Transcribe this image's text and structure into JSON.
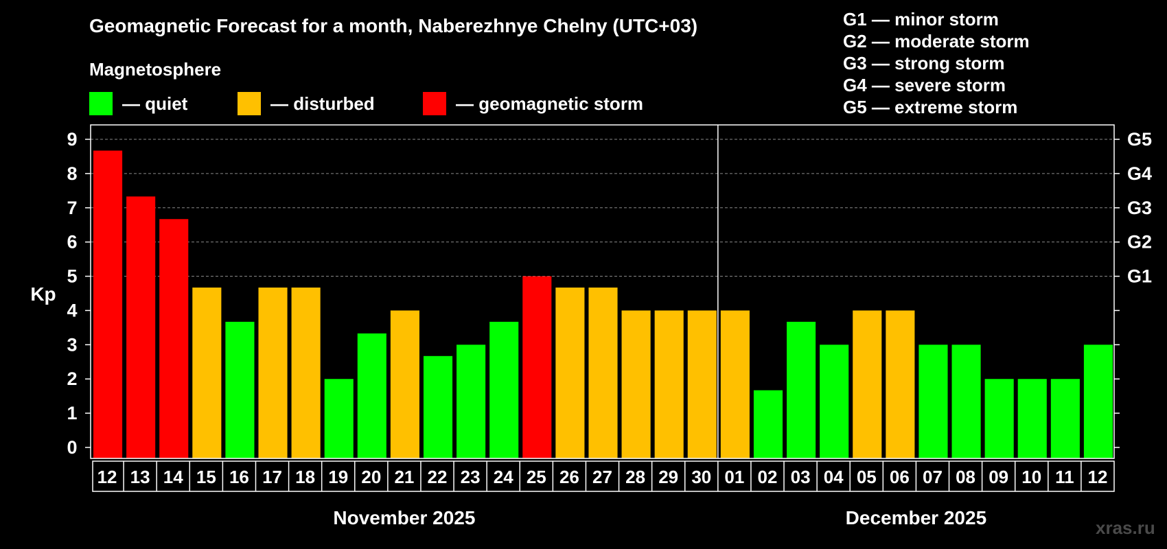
{
  "chart_data": {
    "type": "bar",
    "title": "Geomagnetic Forecast for a month, Naberezhnye Chelny (UTC+03)",
    "subtitle": "Magnetosphere",
    "ylabel": "Kp",
    "ylim": [
      0,
      9
    ],
    "yticks": [
      "0",
      "1",
      "2",
      "3",
      "4",
      "5",
      "6",
      "7",
      "8",
      "9"
    ],
    "storm_levels": [
      {
        "label": "G1",
        "kp": 5
      },
      {
        "label": "G2",
        "kp": 6
      },
      {
        "label": "G3",
        "kp": 7
      },
      {
        "label": "G4",
        "kp": 8
      },
      {
        "label": "G5",
        "kp": 9
      }
    ],
    "legend": [
      {
        "status": "quiet",
        "label": "— quiet",
        "color": "#00ff00"
      },
      {
        "status": "disturbed",
        "label": "— disturbed",
        "color": "#ffc000"
      },
      {
        "status": "storm",
        "label": "— geomagnetic storm",
        "color": "#ff0000"
      }
    ],
    "storm_legend": [
      "G1 — minor storm",
      "G2 — moderate storm",
      "G3 — strong storm",
      "G4 — severe storm",
      "G5 — extreme storm"
    ],
    "months": [
      "November 2025",
      "December 2025"
    ],
    "categories": [
      "12",
      "13",
      "14",
      "15",
      "16",
      "17",
      "18",
      "19",
      "20",
      "21",
      "22",
      "23",
      "24",
      "25",
      "26",
      "27",
      "28",
      "29",
      "30",
      "01",
      "02",
      "03",
      "04",
      "05",
      "06",
      "07",
      "08",
      "09",
      "10",
      "11",
      "12"
    ],
    "values": [
      8.67,
      7.33,
      6.67,
      4.67,
      3.67,
      4.67,
      4.67,
      2,
      3.33,
      4,
      2.67,
      3,
      3.67,
      5,
      4.67,
      4.67,
      4,
      4,
      4,
      4,
      1.67,
      3.67,
      3,
      4,
      4,
      3,
      3,
      2,
      2,
      2,
      3
    ],
    "status": [
      "storm",
      "storm",
      "storm",
      "disturbed",
      "quiet",
      "disturbed",
      "disturbed",
      "quiet",
      "quiet",
      "disturbed",
      "quiet",
      "quiet",
      "quiet",
      "storm",
      "disturbed",
      "disturbed",
      "disturbed",
      "disturbed",
      "disturbed",
      "disturbed",
      "quiet",
      "quiet",
      "quiet",
      "disturbed",
      "disturbed",
      "quiet",
      "quiet",
      "quiet",
      "quiet",
      "quiet",
      "quiet"
    ],
    "month_split_after": 18,
    "watermark": "xras.ru"
  }
}
